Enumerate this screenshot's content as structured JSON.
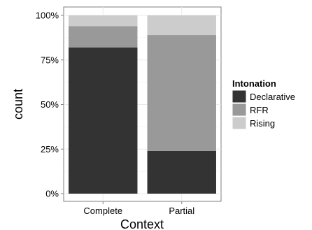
{
  "chart_data": {
    "type": "bar",
    "stacked": true,
    "normalized": true,
    "categories": [
      "Complete",
      "Partial"
    ],
    "series": [
      {
        "name": "Declarative",
        "values": [
          0.82,
          0.24
        ],
        "color": "#333333"
      },
      {
        "name": "RFR",
        "values": [
          0.12,
          0.65
        ],
        "color": "#999999"
      },
      {
        "name": "Rising",
        "values": [
          0.06,
          0.11
        ],
        "color": "#cccccc"
      }
    ],
    "xlabel": "Context",
    "ylabel": "count",
    "ylim": [
      0,
      1
    ],
    "y_ticks": [
      "0%",
      "25%",
      "50%",
      "75%",
      "100%"
    ],
    "y_tick_values": [
      0,
      0.25,
      0.5,
      0.75,
      1.0
    ],
    "legend_title": "Intonation",
    "legend_position": "right",
    "grid": true,
    "panel_background": "#ffffff",
    "grid_color": "#ebebeb"
  }
}
